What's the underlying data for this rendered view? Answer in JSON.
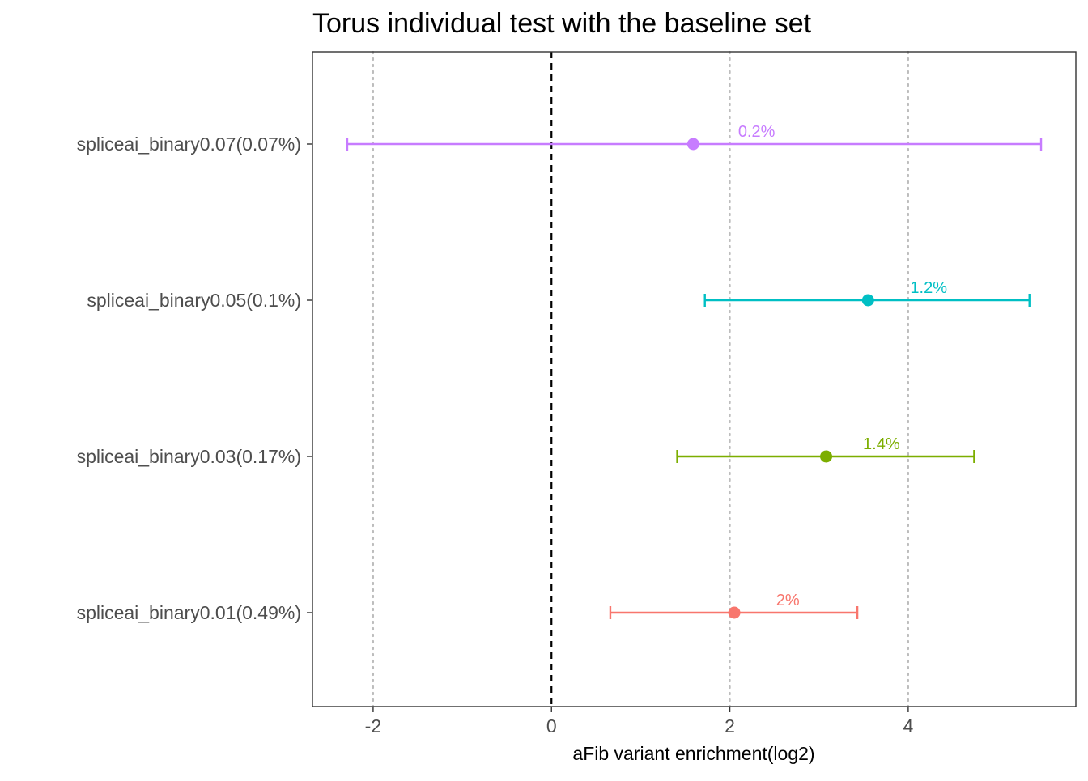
{
  "chart_data": {
    "type": "forest",
    "title": "Torus individual test with the baseline set",
    "xlabel": "aFib variant enrichment(log2)",
    "ylabel": "",
    "xlim": [
      -2.68,
      5.88
    ],
    "x_ticks": [
      -2,
      0,
      2,
      4
    ],
    "x_tick_labels": [
      "-2",
      "0",
      "2",
      "4"
    ],
    "reference_line": 0,
    "grid": "vertical dotted at major x ticks",
    "legend": "none",
    "categories": [
      "spliceai_binary0.01(0.49%)",
      "spliceai_binary0.03(0.17%)",
      "spliceai_binary0.05(0.1%)",
      "spliceai_binary0.07(0.07%)"
    ],
    "estimates": [
      2.05,
      3.08,
      3.55,
      1.59
    ],
    "ci_low": [
      0.66,
      1.41,
      1.72,
      -2.29
    ],
    "ci_high": [
      3.43,
      4.74,
      5.36,
      5.49
    ],
    "labels": [
      "2%",
      "1.4%",
      "1.2%",
      "0.2%"
    ],
    "label_x": [
      2.65,
      3.7,
      4.23,
      2.3
    ],
    "colors": [
      "#f8766d",
      "#7cae00",
      "#00bfc4",
      "#c77cff"
    ]
  }
}
